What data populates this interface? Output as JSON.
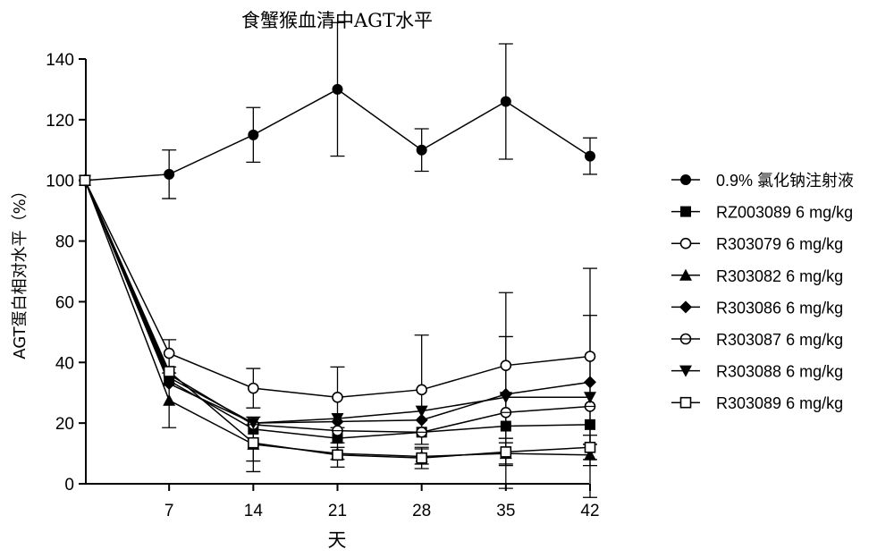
{
  "chart_data": {
    "type": "line",
    "title": "食蟹猴血清中AGT水平",
    "xlabel": "天",
    "ylabel": "AGT蛋白相对水平（%）",
    "x": [
      0,
      7,
      14,
      21,
      28,
      35,
      42
    ],
    "xticks": [
      7,
      14,
      21,
      28,
      35,
      42
    ],
    "xlim": [
      0,
      42
    ],
    "ylim": [
      0,
      140
    ],
    "yticks": [
      0,
      20,
      40,
      60,
      80,
      100,
      120,
      140
    ],
    "grid": false,
    "legend_position": "right",
    "series": [
      {
        "name": "0.9% 氯化钠注射液",
        "marker": "circle-filled",
        "values": [
          100,
          102,
          115,
          130,
          110,
          126,
          108
        ],
        "err": [
          0,
          8,
          9,
          22,
          7,
          19,
          6
        ]
      },
      {
        "name": "RZ003089 6 mg/kg",
        "marker": "square-filled",
        "values": [
          100,
          34,
          18,
          15,
          17,
          19,
          19.5
        ],
        "err": [
          0,
          0,
          0,
          0,
          0,
          0,
          0
        ]
      },
      {
        "name": "R303079 6 mg/kg",
        "marker": "circle-open",
        "values": [
          100,
          43,
          31.5,
          28.5,
          31,
          39,
          42
        ],
        "err": [
          0,
          4.5,
          6.5,
          10,
          18,
          24,
          29
        ]
      },
      {
        "name": "R303082 6 mg/kg",
        "marker": "triangle-up-filled",
        "values": [
          100,
          27.5,
          13,
          10,
          9,
          10,
          9.5
        ],
        "err": [
          0,
          9,
          9,
          2,
          2.5,
          3.5,
          3.5
        ]
      },
      {
        "name": "R303086 6 mg/kg",
        "marker": "diamond-filled",
        "values": [
          100,
          33,
          20,
          20.5,
          21,
          29.5,
          33.5
        ],
        "err": [
          0,
          0,
          0,
          0,
          0,
          0,
          0
        ]
      },
      {
        "name": "R303087 6 mg/kg",
        "marker": "circle-open-half",
        "values": [
          100,
          36,
          19.5,
          17.5,
          17,
          23.5,
          25.5
        ],
        "err": [
          0,
          0,
          0,
          0,
          0,
          25,
          30
        ]
      },
      {
        "name": "R303088 6 mg/kg",
        "marker": "triangle-down-filled",
        "values": [
          100,
          35,
          20,
          21.5,
          24,
          28.5,
          28.5
        ],
        "err": [
          0,
          0,
          0,
          0,
          0,
          0,
          0
        ]
      },
      {
        "name": "R303089 6 mg/kg",
        "marker": "square-open",
        "values": [
          100,
          37,
          13.5,
          9.5,
          8.5,
          10.5,
          12
        ],
        "err": [
          0,
          0,
          6,
          4,
          3.5,
          4.5,
          4
        ]
      }
    ]
  }
}
